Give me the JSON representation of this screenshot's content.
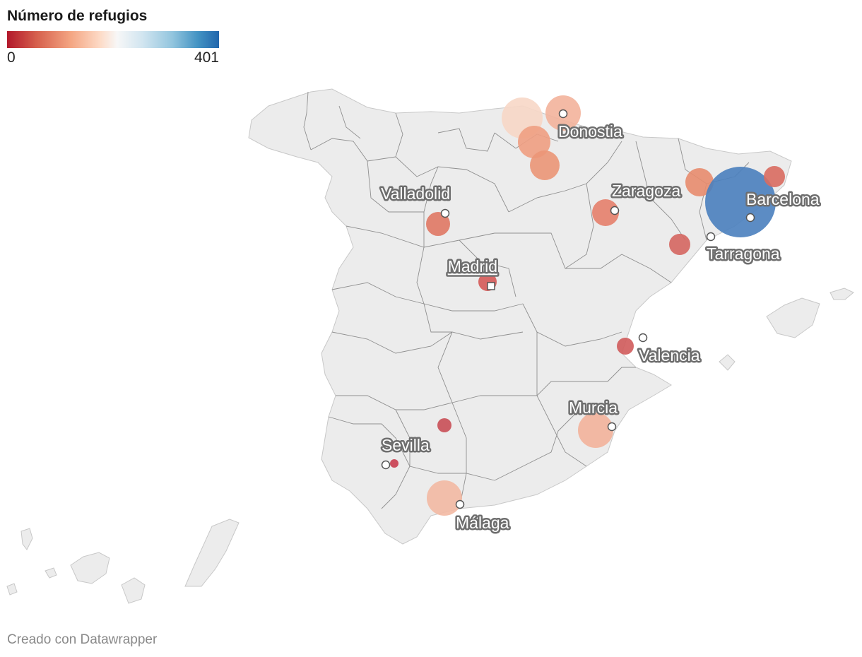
{
  "legend": {
    "title": "Número de refugios",
    "min_label": "0",
    "max_label": "401",
    "min_value": 0,
    "max_value": 401,
    "colors": [
      "#b2182b",
      "#d6604d",
      "#f4a582",
      "#fddbc7",
      "#f7f7f7",
      "#d1e5f0",
      "#92c5de",
      "#4393c3",
      "#2166ac"
    ]
  },
  "map": {
    "region": "Spain",
    "land_color": "#ececec",
    "border_color": "#9a9a9a"
  },
  "cities": [
    {
      "name": "Donostia"
    },
    {
      "name": "Zaragoza"
    },
    {
      "name": "Valladolid"
    },
    {
      "name": "Barcelona"
    },
    {
      "name": "Tarragona"
    },
    {
      "name": "Madrid",
      "capital": true
    },
    {
      "name": "Valencia"
    },
    {
      "name": "Murcia"
    },
    {
      "name": "Sevilla"
    },
    {
      "name": "Málaga"
    }
  ],
  "bubbles": [
    {
      "color": "#f7d7c7"
    },
    {
      "color": "#f3b29b"
    },
    {
      "color": "#ef9f82"
    },
    {
      "color": "#eb9677"
    },
    {
      "color": "#e88c6e"
    },
    {
      "color": "#e5806b"
    },
    {
      "color": "#e07864"
    },
    {
      "color": "#4a7fbe"
    },
    {
      "color": "#d96b60"
    },
    {
      "color": "#d56660"
    },
    {
      "color": "#d55a58"
    },
    {
      "color": "#d05b5b"
    },
    {
      "color": "#c94f57"
    },
    {
      "color": "#f3b29b"
    },
    {
      "color": "#c93e50"
    },
    {
      "color": "#f3b9a3"
    }
  ],
  "footer": "Creado con Datawrapper"
}
